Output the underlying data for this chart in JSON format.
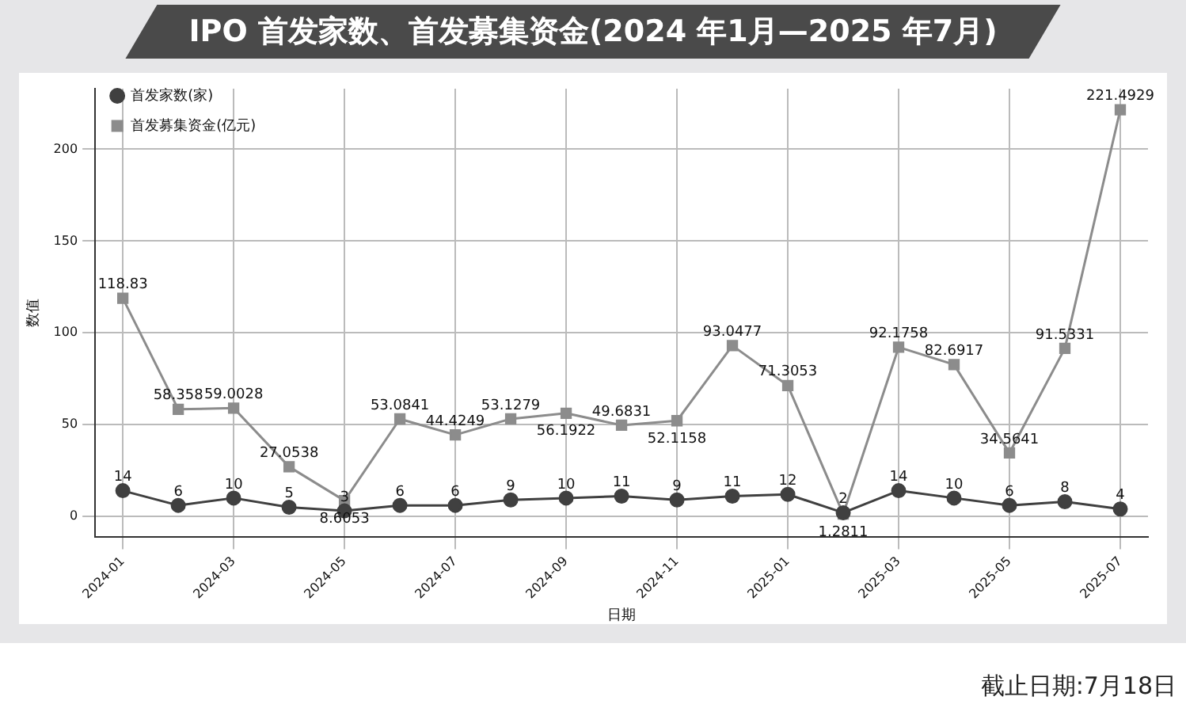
{
  "chart_data": {
    "type": "line",
    "title": "IPO 首发家数、首发募集资金(2024 年1月—2025 年7月)",
    "xlabel": "日期",
    "ylabel": "数值",
    "categories": [
      "2024-01",
      null,
      "2024-03",
      null,
      "2024-05",
      null,
      "2024-07",
      null,
      "2024-09",
      null,
      "2024-11",
      null,
      "2025-01",
      null,
      "2025-03",
      null,
      "2025-05",
      null,
      "2025-07"
    ],
    "series": [
      {
        "name": "首发家数(家)",
        "color": "#404040",
        "marker": "circle",
        "values": [
          14,
          6,
          10,
          5,
          3,
          6,
          6,
          9,
          10,
          11,
          9,
          11,
          12,
          2,
          14,
          10,
          6,
          8,
          4
        ]
      },
      {
        "name": "首发募集资金(亿元)",
        "color": "#8c8c8c",
        "marker": "square",
        "values": [
          118.83,
          58.358,
          59.0028,
          27.0538,
          8.6053,
          53.0841,
          44.4249,
          53.1279,
          56.1922,
          49.6831,
          52.1158,
          93.0477,
          71.3053,
          1.2811,
          92.1758,
          82.6917,
          34.5641,
          91.5331,
          221.4929
        ]
      }
    ],
    "ylim": [
      -11,
      233
    ],
    "yticks": [
      0,
      50,
      100,
      150,
      200
    ],
    "grid": true,
    "legend": "top left",
    "data_labels": true,
    "annotations": [
      "截止日期:7月18日"
    ]
  }
}
